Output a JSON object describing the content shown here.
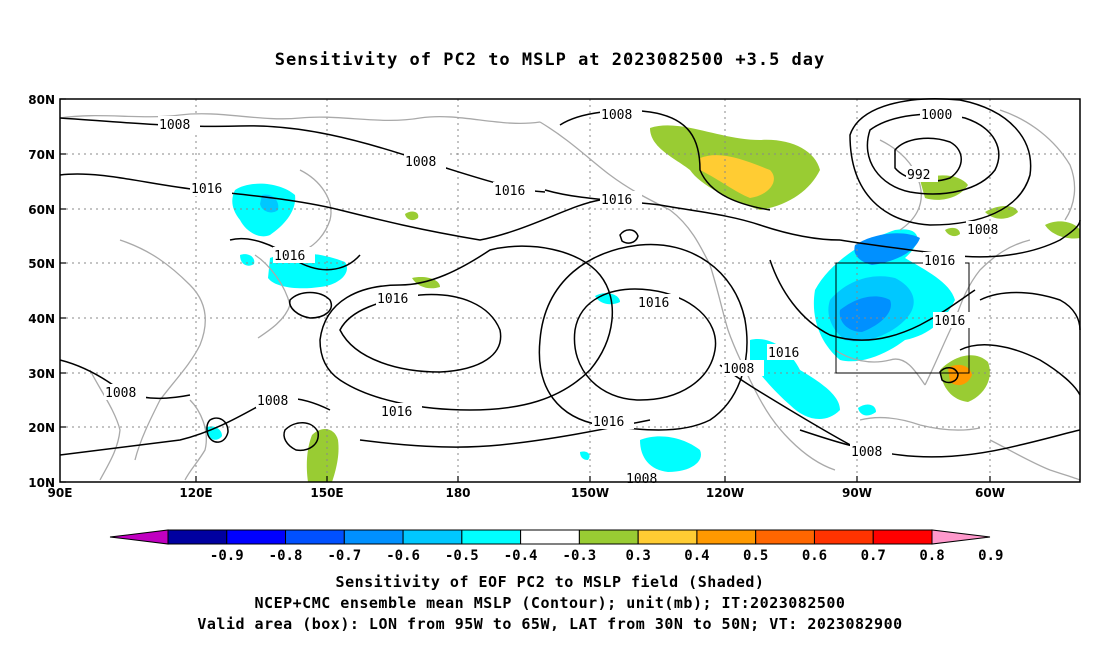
{
  "title": "Sensitivity of PC2 to MSLP at 2023082500 +3.5 day",
  "map": {
    "lat_labels": [
      "80N",
      "70N",
      "60N",
      "50N",
      "40N",
      "30N",
      "20N",
      "10N"
    ],
    "lon_labels": [
      "90E",
      "120E",
      "150E",
      "180",
      "150W",
      "120W",
      "90W",
      "60W"
    ],
    "coastline_color": "#a9a9a9",
    "contour_color": "#000000",
    "valid_box": {
      "lon_range": [
        "95W",
        "65W"
      ],
      "lat_range": [
        "30N",
        "50N"
      ]
    }
  },
  "contour_labels": [
    {
      "text": "1008",
      "name": "label-1008-a"
    },
    {
      "text": "1008",
      "name": "label-1008-b"
    },
    {
      "text": "1016",
      "name": "label-1016-a"
    },
    {
      "text": "1016",
      "name": "label-1016-b"
    },
    {
      "text": "1008",
      "name": "label-1008-c"
    },
    {
      "text": "1016",
      "name": "label-1016-c"
    },
    {
      "text": "1008",
      "name": "label-1008-d"
    },
    {
      "text": "1016",
      "name": "label-1016-d"
    },
    {
      "text": "1016",
      "name": "label-1016-e"
    },
    {
      "text": "1016",
      "name": "label-1016-f"
    },
    {
      "text": "1016",
      "name": "label-1016-g"
    },
    {
      "text": "1000",
      "name": "label-1000"
    },
    {
      "text": "992",
      "name": "label-992"
    },
    {
      "text": "1008",
      "name": "label-1008-e"
    },
    {
      "text": "1016",
      "name": "label-1016-h"
    },
    {
      "text": "1016",
      "name": "label-1016-i"
    },
    {
      "text": "1016",
      "name": "label-1016-j"
    },
    {
      "text": "1008",
      "name": "label-1008-f"
    },
    {
      "text": "1016",
      "name": "label-1016-k"
    },
    {
      "text": "1008",
      "name": "label-1008-g"
    },
    {
      "text": "1008",
      "name": "label-1008-h"
    },
    {
      "text": "1008",
      "name": "label-1008-i"
    }
  ],
  "colorbar": {
    "levels": [
      "-0.9",
      "-0.8",
      "-0.7",
      "-0.6",
      "-0.5",
      "-0.4",
      "-0.3",
      "0.3",
      "0.4",
      "0.5",
      "0.6",
      "0.7",
      "0.8",
      "0.9"
    ],
    "colors": [
      "#c000c0",
      "#0000a0",
      "#0000ff",
      "#0050ff",
      "#0090ff",
      "#00c8ff",
      "#00ffff",
      "#ffffff",
      "#99cc33",
      "#ffcc33",
      "#ff9900",
      "#ff6600",
      "#ff3300",
      "#ff0000",
      "#ff99cc"
    ]
  },
  "captions": [
    "Sensitivity of EOF PC2 to MSLP field (Shaded)",
    "NCEP+CMC ensemble mean MSLP (Contour); unit(mb); IT:2023082500",
    "Valid area (box): LON from 95W to 65W, LAT from 30N to 50N; VT: 2023082900"
  ]
}
